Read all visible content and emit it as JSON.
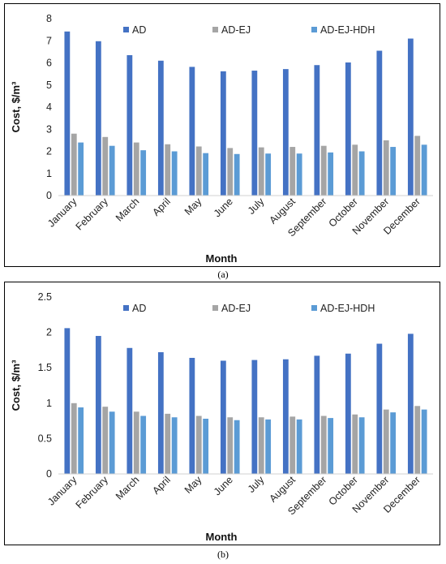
{
  "chart_data": [
    {
      "type": "bar",
      "title": "",
      "xlabel": "Month",
      "ylabel": "Cost, $/m³",
      "ylim": [
        0,
        8
      ],
      "yticks": [
        "0",
        "1",
        "2",
        "3",
        "4",
        "5",
        "6",
        "7",
        "8"
      ],
      "legend": "top",
      "grid": false,
      "categories": [
        "January",
        "February",
        "March",
        "April",
        "May",
        "June",
        "July",
        "August",
        "September",
        "October",
        "November",
        "December"
      ],
      "series": [
        {
          "name": "AD",
          "color": "#4472C4",
          "values": [
            7.42,
            6.98,
            6.35,
            6.1,
            5.82,
            5.62,
            5.65,
            5.72,
            5.9,
            6.02,
            6.55,
            7.1
          ]
        },
        {
          "name": "AD-EJ",
          "color": "#A5A5A5",
          "values": [
            2.8,
            2.65,
            2.4,
            2.32,
            2.22,
            2.15,
            2.18,
            2.2,
            2.25,
            2.3,
            2.5,
            2.7
          ]
        },
        {
          "name": "AD-EJ-HDH",
          "color": "#5B9BD5",
          "values": [
            2.4,
            2.25,
            2.05,
            2.0,
            1.92,
            1.88,
            1.9,
            1.9,
            1.95,
            2.0,
            2.2,
            2.3
          ]
        }
      ]
    },
    {
      "type": "bar",
      "title": "",
      "xlabel": "Month",
      "ylabel": "Cost, $/m³",
      "ylim": [
        0,
        2.5
      ],
      "yticks": [
        "0",
        "0.5",
        "1",
        "1.5",
        "2",
        "2.5"
      ],
      "legend": "top",
      "grid": false,
      "categories": [
        "January",
        "February",
        "March",
        "April",
        "May",
        "June",
        "July",
        "August",
        "September",
        "October",
        "November",
        "December"
      ],
      "series": [
        {
          "name": "AD",
          "color": "#4472C4",
          "values": [
            2.06,
            1.95,
            1.78,
            1.72,
            1.64,
            1.6,
            1.61,
            1.62,
            1.67,
            1.7,
            1.84,
            1.98
          ]
        },
        {
          "name": "AD-EJ",
          "color": "#A5A5A5",
          "values": [
            1.0,
            0.95,
            0.88,
            0.85,
            0.82,
            0.8,
            0.8,
            0.81,
            0.82,
            0.84,
            0.91,
            0.96
          ]
        },
        {
          "name": "AD-EJ-HDH",
          "color": "#5B9BD5",
          "values": [
            0.94,
            0.88,
            0.82,
            0.8,
            0.78,
            0.76,
            0.77,
            0.77,
            0.79,
            0.8,
            0.87,
            0.91
          ]
        }
      ]
    }
  ],
  "captions": {
    "a": "(a)",
    "b": "(b)"
  }
}
